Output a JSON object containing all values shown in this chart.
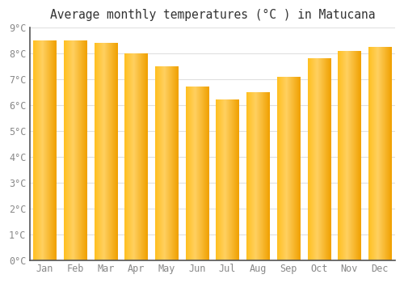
{
  "title": "Average monthly temperatures (°C ) in Matucana",
  "months": [
    "Jan",
    "Feb",
    "Mar",
    "Apr",
    "May",
    "Jun",
    "Jul",
    "Aug",
    "Sep",
    "Oct",
    "Nov",
    "Dec"
  ],
  "values": [
    8.5,
    8.5,
    8.4,
    8.0,
    7.5,
    6.7,
    6.2,
    6.5,
    7.1,
    7.8,
    8.1,
    8.25
  ],
  "bar_color_left": "#FFC020",
  "bar_color_center": "#FFD060",
  "bar_color_right": "#F0A000",
  "ylim": [
    0,
    9
  ],
  "yticks": [
    0,
    1,
    2,
    3,
    4,
    5,
    6,
    7,
    8,
    9
  ],
  "ytick_labels": [
    "0°C",
    "1°C",
    "2°C",
    "3°C",
    "4°C",
    "5°C",
    "6°C",
    "7°C",
    "8°C",
    "9°C"
  ],
  "title_fontsize": 10.5,
  "tick_fontsize": 8.5,
  "background_color": "#ffffff",
  "grid_color": "#e0e0e0",
  "axis_color": "#555555",
  "tick_label_color": "#888888"
}
